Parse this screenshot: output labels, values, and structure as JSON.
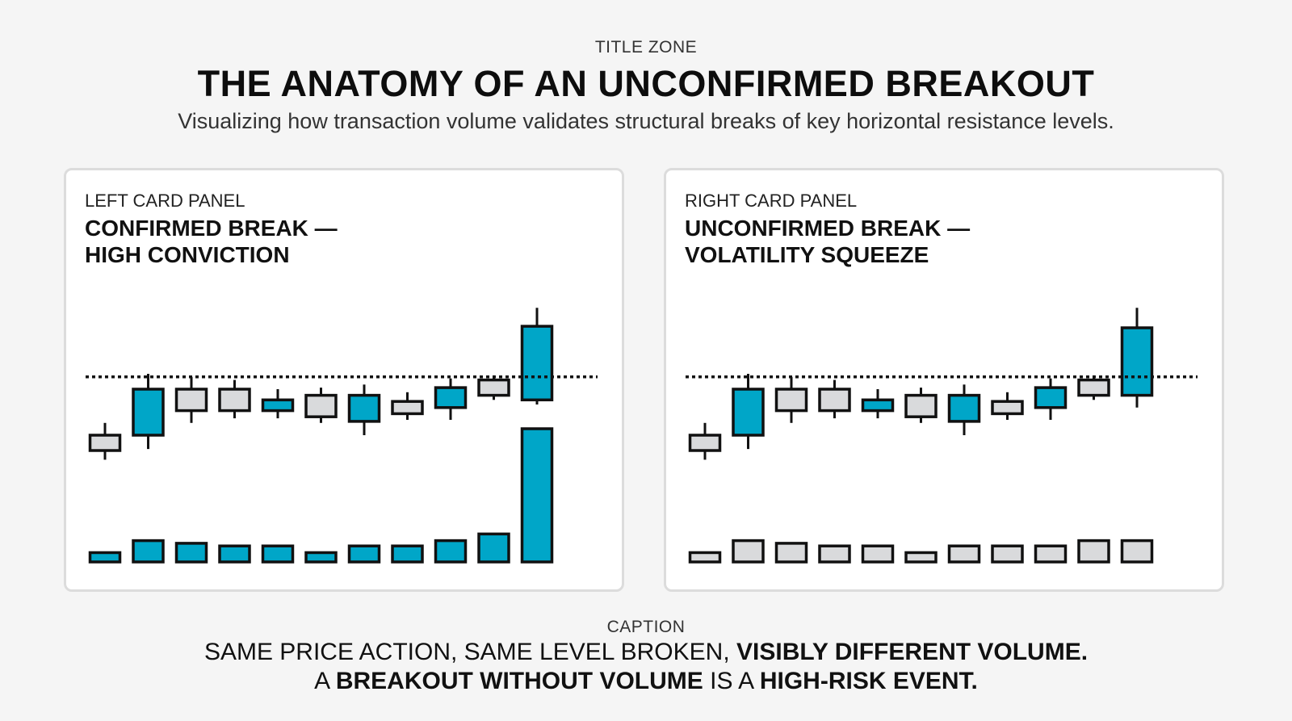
{
  "header": {
    "zone_label": "TITLE ZONE",
    "title": "THE ANATOMY OF AN UNCONFIRMED BREAKOUT",
    "subtitle": "Visualizing how transaction volume validates structural breaks of key horizontal resistance levels."
  },
  "colors": {
    "up": "#00a6c8",
    "neutral": "#d9dadc",
    "outline": "#111111",
    "resistance": "#111111"
  },
  "left_card": {
    "label": "LEFT CARD PANEL",
    "title": "CONFIRMED BREAK —\nHIGH CONVICTION"
  },
  "right_card": {
    "label": "RIGHT CARD PANEL",
    "title": "UNCONFIRMED BREAK —\nVOLATILITY SQUEEZE"
  },
  "caption": {
    "label": "CAPTION",
    "line1_part1": "SAME PRICE ACTION, SAME LEVEL BROKEN, ",
    "line1_bold": "VISIBLY DIFFERENT VOLUME.",
    "line2_part1": "A ",
    "line2_bold1": "BREAKOUT WITHOUT VOLUME",
    "line2_part2": " IS A ",
    "line2_bold2": "HIGH-RISK EVENT."
  },
  "chart_data": [
    {
      "type": "candlestick",
      "title": "CONFIRMED BREAK — HIGH CONVICTION",
      "resistance_level": 58,
      "price_ylim": [
        -20,
        90
      ],
      "volume_ylim": [
        0,
        100
      ],
      "candles": [
        {
          "open": 10,
          "close": 20,
          "high": 28,
          "low": 4,
          "color": "neutral"
        },
        {
          "open": 20,
          "close": 50,
          "high": 60,
          "low": 11,
          "color": "up"
        },
        {
          "open": 50,
          "close": 36,
          "high": 58,
          "low": 28,
          "color": "neutral"
        },
        {
          "open": 50,
          "close": 36,
          "high": 56,
          "low": 31,
          "color": "neutral"
        },
        {
          "open": 43,
          "close": 36,
          "high": 50,
          "low": 31,
          "color": "up"
        },
        {
          "open": 46,
          "close": 32,
          "high": 51,
          "low": 28,
          "color": "neutral"
        },
        {
          "open": 29,
          "close": 46,
          "high": 53,
          "low": 20,
          "color": "up"
        },
        {
          "open": 42,
          "close": 34,
          "high": 48,
          "low": 30,
          "color": "neutral"
        },
        {
          "open": 38,
          "close": 51,
          "high": 57,
          "low": 30,
          "color": "up"
        },
        {
          "open": 46,
          "close": 56,
          "high": 59,
          "low": 43,
          "color": "neutral"
        },
        {
          "open": 43,
          "close": 91,
          "high": 103,
          "low": 40,
          "color": "up"
        }
      ],
      "volumes": [
        7,
        16,
        14,
        12,
        12,
        7,
        12,
        12,
        16,
        21,
        100
      ],
      "volume_colors": [
        "up",
        "up",
        "up",
        "up",
        "up",
        "up",
        "up",
        "up",
        "up",
        "up",
        "up"
      ]
    },
    {
      "type": "candlestick",
      "title": "UNCONFIRMED BREAK — VOLATILITY SQUEEZE",
      "resistance_level": 58,
      "price_ylim": [
        -20,
        90
      ],
      "volume_ylim": [
        0,
        100
      ],
      "candles": [
        {
          "open": 10,
          "close": 20,
          "high": 28,
          "low": 4,
          "color": "neutral"
        },
        {
          "open": 20,
          "close": 50,
          "high": 60,
          "low": 11,
          "color": "up"
        },
        {
          "open": 50,
          "close": 36,
          "high": 58,
          "low": 28,
          "color": "neutral"
        },
        {
          "open": 50,
          "close": 36,
          "high": 56,
          "low": 31,
          "color": "neutral"
        },
        {
          "open": 43,
          "close": 36,
          "high": 50,
          "low": 31,
          "color": "up"
        },
        {
          "open": 46,
          "close": 32,
          "high": 51,
          "low": 28,
          "color": "neutral"
        },
        {
          "open": 29,
          "close": 46,
          "high": 53,
          "low": 20,
          "color": "up"
        },
        {
          "open": 42,
          "close": 34,
          "high": 48,
          "low": 30,
          "color": "neutral"
        },
        {
          "open": 38,
          "close": 51,
          "high": 57,
          "low": 30,
          "color": "up"
        },
        {
          "open": 46,
          "close": 56,
          "high": 59,
          "low": 43,
          "color": "neutral"
        },
        {
          "open": 46,
          "close": 90,
          "high": 103,
          "low": 38,
          "color": "up"
        }
      ],
      "volumes": [
        7,
        16,
        14,
        12,
        12,
        7,
        12,
        12,
        12,
        16,
        16
      ],
      "volume_colors": [
        "neutral",
        "neutral",
        "neutral",
        "neutral",
        "neutral",
        "neutral",
        "neutral",
        "neutral",
        "neutral",
        "neutral",
        "neutral"
      ]
    }
  ]
}
